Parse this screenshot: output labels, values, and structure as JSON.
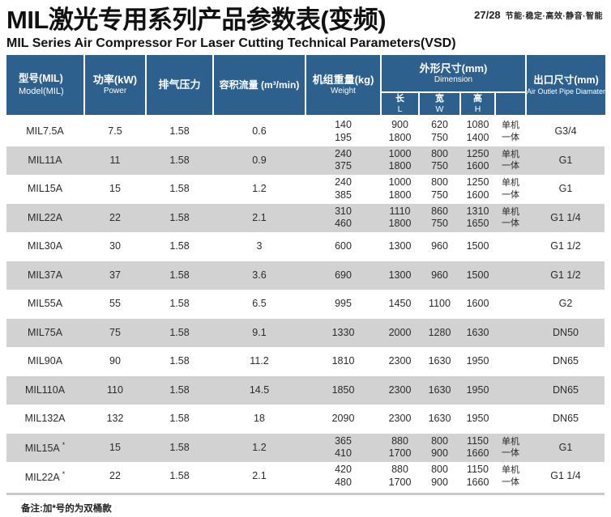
{
  "page": {
    "title": "MIL激光专用系列产品参数表(变频)",
    "subtitle": "MIL Series Air Compressor For Laser Cutting  Technical Parameters(VSD)",
    "page_number": "27/28",
    "tagline": "节能·稳定·高效·静音·智能"
  },
  "colors": {
    "header_blue": "#2d608d",
    "alt_row_gray": "#d2d2d2"
  },
  "table": {
    "columns": [
      {
        "zh": "型号(MIL)",
        "en": "Model(MIL)"
      },
      {
        "zh": "功率(kW)",
        "en": "Power"
      },
      {
        "zh": "排气压力",
        "en": ""
      },
      {
        "zh": "容积流量 (m³/min)",
        "en": ""
      },
      {
        "zh": "机组重量(kg)",
        "en": "Weight"
      },
      {
        "zh": "外形尺寸(mm)",
        "en": "Dimension",
        "subcolumns": [
          {
            "zh": "长",
            "en": "L"
          },
          {
            "zh": "宽",
            "en": "W"
          },
          {
            "zh": "高",
            "en": "H"
          },
          {
            "zh": "",
            "en": ""
          }
        ]
      },
      {
        "zh": "出口尺寸(mm)",
        "en": "Air Outlet Pipe Diamater"
      }
    ],
    "rows": [
      {
        "model": "MIL7.5A",
        "star": false,
        "power": "7.5",
        "pressure": "1.58",
        "flow": "0.6",
        "weight": [
          "140",
          "195"
        ],
        "length": [
          "900",
          "1800"
        ],
        "width": [
          "620",
          "750"
        ],
        "height": [
          "1080",
          "1400"
        ],
        "unit_type": [
          "单机",
          "一体"
        ],
        "outlet": "G3/4"
      },
      {
        "model": "MIL11A",
        "star": false,
        "power": "11",
        "pressure": "1.58",
        "flow": "0.9",
        "weight": [
          "240",
          "375"
        ],
        "length": [
          "1000",
          "1800"
        ],
        "width": [
          "800",
          "750"
        ],
        "height": [
          "1250",
          "1600"
        ],
        "unit_type": [
          "单机",
          "一体"
        ],
        "outlet": "G1"
      },
      {
        "model": "MIL15A",
        "star": false,
        "power": "15",
        "pressure": "1.58",
        "flow": "1.2",
        "weight": [
          "240",
          "385"
        ],
        "length": [
          "1000",
          "1800"
        ],
        "width": [
          "800",
          "750"
        ],
        "height": [
          "1250",
          "1600"
        ],
        "unit_type": [
          "单机",
          "一体"
        ],
        "outlet": "G1"
      },
      {
        "model": "MIL22A",
        "star": false,
        "power": "22",
        "pressure": "1.58",
        "flow": "2.1",
        "weight": [
          "310",
          "460"
        ],
        "length": [
          "1110",
          "1800"
        ],
        "width": [
          "860",
          "750"
        ],
        "height": [
          "1310",
          "1650"
        ],
        "unit_type": [
          "单机",
          "一体"
        ],
        "outlet": "G1 1/4"
      },
      {
        "model": "MIL30A",
        "star": false,
        "power": "30",
        "pressure": "1.58",
        "flow": "3",
        "weight": [
          "600"
        ],
        "length": [
          "1300"
        ],
        "width": [
          "960"
        ],
        "height": [
          "1500"
        ],
        "unit_type": [],
        "outlet": "G1 1/2"
      },
      {
        "model": "MIL37A",
        "star": false,
        "power": "37",
        "pressure": "1.58",
        "flow": "3.6",
        "weight": [
          "690"
        ],
        "length": [
          "1300"
        ],
        "width": [
          "960"
        ],
        "height": [
          "1500"
        ],
        "unit_type": [],
        "outlet": "G1 1/2"
      },
      {
        "model": "MIL55A",
        "star": false,
        "power": "55",
        "pressure": "1.58",
        "flow": "6.5",
        "weight": [
          "995"
        ],
        "length": [
          "1450"
        ],
        "width": [
          "1100"
        ],
        "height": [
          "1600"
        ],
        "unit_type": [],
        "outlet": "G2"
      },
      {
        "model": "MIL75A",
        "star": false,
        "power": "75",
        "pressure": "1.58",
        "flow": "9.1",
        "weight": [
          "1330"
        ],
        "length": [
          "2000"
        ],
        "width": [
          "1280"
        ],
        "height": [
          "1630"
        ],
        "unit_type": [],
        "outlet": "DN50"
      },
      {
        "model": "MIL90A",
        "star": false,
        "power": "90",
        "pressure": "1.58",
        "flow": "11.2",
        "weight": [
          "1810"
        ],
        "length": [
          "2300"
        ],
        "width": [
          "1630"
        ],
        "height": [
          "1950"
        ],
        "unit_type": [],
        "outlet": "DN65"
      },
      {
        "model": "MIL110A",
        "star": false,
        "power": "110",
        "pressure": "1.58",
        "flow": "14.5",
        "weight": [
          "1850"
        ],
        "length": [
          "2300"
        ],
        "width": [
          "1630"
        ],
        "height": [
          "1950"
        ],
        "unit_type": [],
        "outlet": "DN65"
      },
      {
        "model": "MIL132A",
        "star": false,
        "power": "132",
        "pressure": "1.58",
        "flow": "18",
        "weight": [
          "2090"
        ],
        "length": [
          "2300"
        ],
        "width": [
          "1630"
        ],
        "height": [
          "1950"
        ],
        "unit_type": [],
        "outlet": "DN65"
      },
      {
        "model": "MIL15A",
        "star": true,
        "power": "15",
        "pressure": "1.58",
        "flow": "1.2",
        "weight": [
          "365",
          "410"
        ],
        "length": [
          "880",
          "1700"
        ],
        "width": [
          "800",
          "900"
        ],
        "height": [
          "1150",
          "1660"
        ],
        "unit_type": [
          "单机",
          "一体"
        ],
        "outlet": "G1"
      },
      {
        "model": "MIL22A",
        "star": true,
        "power": "22",
        "pressure": "1.58",
        "flow": "2.1",
        "weight": [
          "420",
          "480"
        ],
        "length": [
          "880",
          "1700"
        ],
        "width": [
          "800",
          "900"
        ],
        "height": [
          "1150",
          "1660"
        ],
        "unit_type": [
          "单机",
          "一体"
        ],
        "outlet": "G1 1/4"
      }
    ],
    "note": "备注:加*号的为双桶款",
    "star_marker": "*"
  }
}
